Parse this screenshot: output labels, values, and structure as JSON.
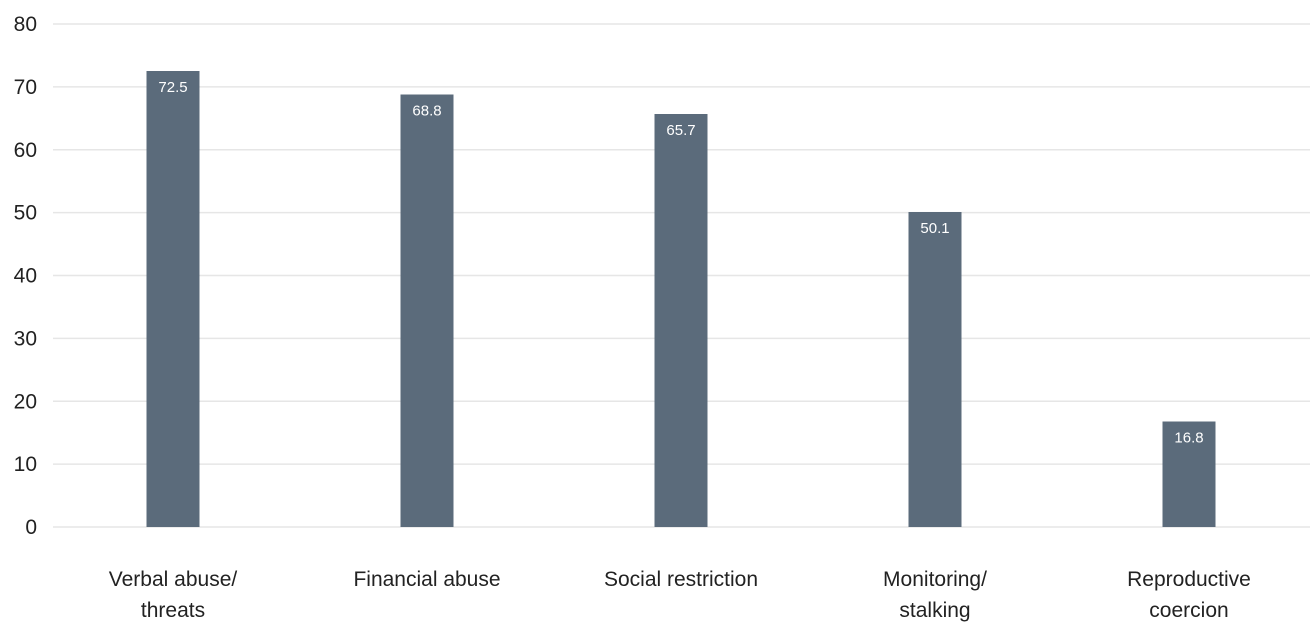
{
  "chart_data": {
    "type": "bar",
    "title": "",
    "xlabel": "",
    "ylabel": "",
    "categories": [
      [
        "Verbal abuse/",
        "threats"
      ],
      [
        "Financial abuse"
      ],
      [
        "Social restriction"
      ],
      [
        "Monitoring/",
        "stalking"
      ],
      [
        "Reproductive",
        "coercion"
      ]
    ],
    "values": [
      72.5,
      68.8,
      65.7,
      50.1,
      16.8
    ],
    "data_labels": [
      "72.5",
      "68.8",
      "65.7",
      "50.1",
      "16.8"
    ],
    "ylim": [
      0,
      80
    ],
    "yticks": [
      0,
      10,
      20,
      30,
      40,
      50,
      60,
      70,
      80
    ],
    "grid": true,
    "legend": "none",
    "colors": {
      "bar": "#5b6b7b",
      "grid": "#e6e6e6",
      "label": "#222222",
      "data_label": "#ffffff"
    }
  }
}
